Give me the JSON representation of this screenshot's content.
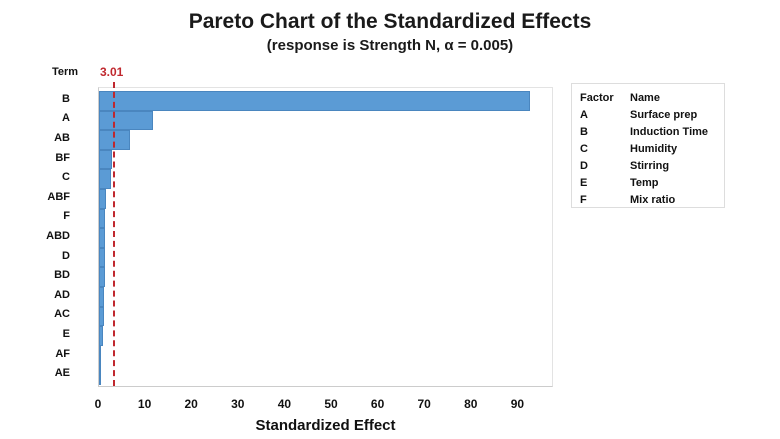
{
  "chart_data": {
    "type": "bar",
    "orientation": "horizontal",
    "title": "Pareto Chart of the Standardized Effects",
    "subtitle": "(response is Strength N, α = 0.005)",
    "xlabel": "Standardized Effect",
    "ylabel": "Term",
    "xlim": [
      0,
      97
    ],
    "xticks": [
      0,
      10,
      20,
      30,
      40,
      50,
      60,
      70,
      80,
      90
    ],
    "reference_line": {
      "value": 3.01,
      "label": "3.01",
      "color": "#c0282e",
      "style": "dashed"
    },
    "categories": [
      "B",
      "A",
      "AB",
      "BF",
      "C",
      "ABF",
      "F",
      "ABD",
      "D",
      "BD",
      "AD",
      "AC",
      "E",
      "AF",
      "AE"
    ],
    "values": [
      92.5,
      11.6,
      6.6,
      2.8,
      2.6,
      1.6,
      1.3,
      1.2,
      1.2,
      1.2,
      1.0,
      1.0,
      0.9,
      0.5,
      0.4
    ],
    "bar_color": "#5b9bd5",
    "legend": {
      "headers": [
        "Factor",
        "Name"
      ],
      "rows": [
        {
          "factor": "A",
          "name": "Surface prep"
        },
        {
          "factor": "B",
          "name": "Induction Time"
        },
        {
          "factor": "C",
          "name": "Humidity"
        },
        {
          "factor": "D",
          "name": "Stirring"
        },
        {
          "factor": "E",
          "name": "Temp"
        },
        {
          "factor": "F",
          "name": "Mix ratio"
        }
      ],
      "position": "right"
    }
  }
}
